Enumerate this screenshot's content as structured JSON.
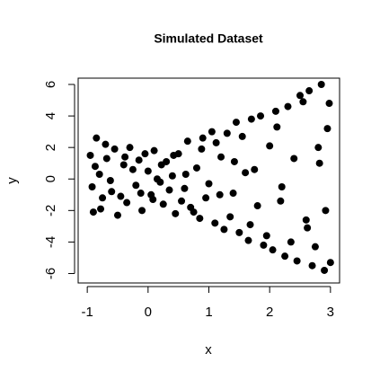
{
  "chart_data": {
    "type": "scatter",
    "title": "Simulated Dataset",
    "x_label": "x",
    "y_label": "y",
    "xlim": [
      -1.15,
      3.15
    ],
    "ylim": [
      -6.6,
      6.4
    ],
    "xticks": [
      -1,
      0,
      1,
      2,
      3
    ],
    "yticks": [
      -6,
      -4,
      -2,
      0,
      2,
      4,
      6
    ],
    "color": "#000000",
    "x": [
      -0.95,
      -0.9,
      -0.85,
      -0.8,
      -0.75,
      -0.7,
      -0.6,
      -0.55,
      -0.5,
      -0.4,
      -0.35,
      -0.3,
      -0.2,
      -0.15,
      -0.1,
      0,
      0.05,
      0.1,
      0.2,
      0.25,
      0.3,
      0.4,
      0.45,
      0.5,
      0.6,
      0.65,
      0.7,
      0.8,
      0.85,
      0.9,
      1.0,
      1.05,
      1.1,
      1.2,
      1.25,
      1.3,
      1.4,
      1.45,
      1.5,
      1.6,
      1.65,
      1.7,
      1.8,
      1.85,
      1.9,
      2.0,
      2.05,
      2.1,
      2.2,
      2.25,
      2.3,
      2.4,
      2.45,
      2.5,
      2.6,
      2.65,
      2.7,
      2.8,
      2.85,
      2.9,
      2.95,
      3.0,
      -0.92,
      -0.87,
      -0.78,
      -0.68,
      -0.62,
      -0.45,
      -0.38,
      -0.25,
      -0.12,
      -0.05,
      0.08,
      0.15,
      0.22,
      0.35,
      0.42,
      0.55,
      0.62,
      0.75,
      0.88,
      0.95,
      1.12,
      1.18,
      1.35,
      1.42,
      1.55,
      1.68,
      1.75,
      1.95,
      2.12,
      2.18,
      2.35,
      2.55,
      2.62,
      2.75,
      2.82,
      2.92,
      2.98
    ],
    "y": [
      1.5,
      -2.1,
      2.6,
      0.3,
      -1.2,
      2.2,
      -0.8,
      1.9,
      -2.3,
      0.9,
      -1.5,
      2.0,
      -0.4,
      1.2,
      -2.0,
      0.5,
      -1.0,
      1.8,
      -0.2,
      -1.6,
      1.1,
      0.2,
      -2.2,
      1.6,
      -0.6,
      2.4,
      -1.8,
      0.7,
      -2.5,
      2.6,
      -0.3,
      3.0,
      -2.8,
      1.4,
      -3.2,
      2.9,
      -0.9,
      3.6,
      -3.4,
      0.4,
      -3.9,
      3.8,
      -1.7,
      4.0,
      -4.2,
      2.1,
      -4.5,
      4.3,
      -0.5,
      -4.9,
      4.6,
      1.3,
      -5.2,
      5.3,
      -2.6,
      5.6,
      -5.5,
      2.0,
      6.0,
      -5.8,
      3.2,
      -5.3,
      -0.5,
      0.8,
      -1.9,
      1.3,
      -0.1,
      -1.1,
      1.4,
      0.6,
      -0.9,
      1.6,
      -1.3,
      0.0,
      0.9,
      -0.7,
      1.5,
      -1.4,
      0.3,
      -2.1,
      1.9,
      -1.2,
      2.3,
      -1.0,
      -2.4,
      1.1,
      2.7,
      -2.9,
      0.6,
      -3.6,
      3.3,
      -1.4,
      -4.0,
      4.9,
      -3.1,
      -4.3,
      1.0,
      -2.0,
      4.8
    ]
  }
}
